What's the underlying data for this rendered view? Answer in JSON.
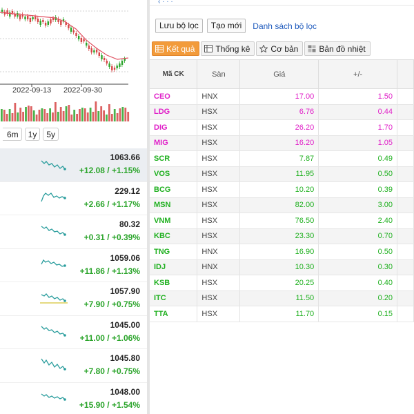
{
  "chart": {
    "date_labels": [
      "2022-09-13",
      "2022-09-30"
    ],
    "line_color": "#e05060",
    "up_color": "#2aa42a",
    "down_color": "#d64545"
  },
  "range_buttons": [
    "6m",
    "1y",
    "5y"
  ],
  "indices": [
    {
      "value": "1063.66",
      "change": "+12.08 / +1.15%",
      "selected": true
    },
    {
      "value": "229.12",
      "change": "+2.66 / +1.17%"
    },
    {
      "value": "80.32",
      "change": "+0.31 / +0.39%"
    },
    {
      "value": "1059.06",
      "change": "+11.86 / +1.13%"
    },
    {
      "value": "1057.90",
      "change": "+7.90 / +0.75%"
    },
    {
      "value": "1045.00",
      "change": "+11.00 / +1.06%"
    },
    {
      "value": "1045.80",
      "change": "+7.80 / +0.75%"
    },
    {
      "value": "1048.00",
      "change": "+15.90 / +1.54%"
    }
  ],
  "filter_bar": {
    "save_label": "Lưu bộ lọc",
    "new_label": "Tạo mới",
    "list_label": "Danh sách bộ lọc"
  },
  "tabs": [
    {
      "label": "Kết quả",
      "icon": "table-icon",
      "active": true
    },
    {
      "label": "Thống kê",
      "icon": "stats-icon"
    },
    {
      "label": "Cơ bản",
      "icon": "star-icon"
    },
    {
      "label": "Bản đồ nhiệt",
      "icon": "heatmap-icon"
    }
  ],
  "table": {
    "headers": [
      "Mã CK",
      "Sàn",
      "Giá",
      "+/-"
    ],
    "rows": [
      {
        "symbol": "CEO",
        "exchange": "HNX",
        "price": "17.00",
        "change": "1.50",
        "color": "mag"
      },
      {
        "symbol": "LDG",
        "exchange": "HSX",
        "price": "6.76",
        "change": "0.44",
        "color": "mag"
      },
      {
        "symbol": "DIG",
        "exchange": "HSX",
        "price": "26.20",
        "change": "1.70",
        "color": "mag"
      },
      {
        "symbol": "MIG",
        "exchange": "HSX",
        "price": "16.20",
        "change": "1.05",
        "color": "mag"
      },
      {
        "symbol": "SCR",
        "exchange": "HSX",
        "price": "7.87",
        "change": "0.49",
        "color": "grn"
      },
      {
        "symbol": "VOS",
        "exchange": "HSX",
        "price": "11.95",
        "change": "0.50",
        "color": "grn"
      },
      {
        "symbol": "BCG",
        "exchange": "HSX",
        "price": "10.20",
        "change": "0.39",
        "color": "grn"
      },
      {
        "symbol": "MSN",
        "exchange": "HSX",
        "price": "82.00",
        "change": "3.00",
        "color": "grn"
      },
      {
        "symbol": "VNM",
        "exchange": "HSX",
        "price": "76.50",
        "change": "2.40",
        "color": "grn"
      },
      {
        "symbol": "KBC",
        "exchange": "HSX",
        "price": "23.30",
        "change": "0.70",
        "color": "grn"
      },
      {
        "symbol": "TNG",
        "exchange": "HNX",
        "price": "16.90",
        "change": "0.50",
        "color": "grn"
      },
      {
        "symbol": "IDJ",
        "exchange": "HNX",
        "price": "10.30",
        "change": "0.30",
        "color": "grn"
      },
      {
        "symbol": "KSB",
        "exchange": "HSX",
        "price": "20.25",
        "change": "0.40",
        "color": "grn"
      },
      {
        "symbol": "ITC",
        "exchange": "HSX",
        "price": "11.50",
        "change": "0.20",
        "color": "grn"
      },
      {
        "symbol": "TTA",
        "exchange": "HSX",
        "price": "11.70",
        "change": "0.15",
        "color": "grn"
      }
    ]
  }
}
